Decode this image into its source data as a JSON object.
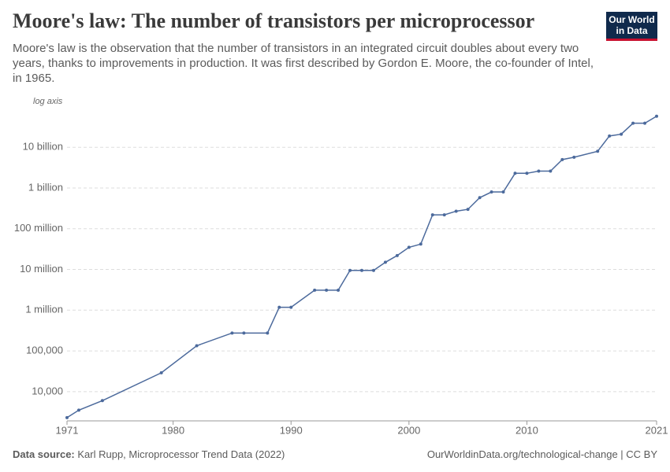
{
  "chart_data": {
    "type": "line",
    "title": "Moore's law: The number of transistors per microprocessor",
    "subtitle": "Moore's law is the observation that the number of transistors in an integrated circuit doubles about every two years, thanks to improvements in production. It was first described by Gordon E. Moore, the co-founder of Intel, in 1965.",
    "y_scale_note": "log axis",
    "log_scale": true,
    "grid": true,
    "color": "#4c6a9c",
    "x": [
      1971,
      1972,
      1974,
      1979,
      1982,
      1985,
      1986,
      1988,
      1989,
      1990,
      1992,
      1993,
      1994,
      1995,
      1996,
      1997,
      1998,
      1999,
      2000,
      2001,
      2002,
      2003,
      2004,
      2005,
      2006,
      2007,
      2008,
      2009,
      2010,
      2011,
      2012,
      2013,
      2014,
      2016,
      2017,
      2018,
      2019,
      2020,
      2021
    ],
    "values": [
      2300,
      3500,
      6000,
      29000,
      134000,
      275000,
      275000,
      275000,
      1180000,
      1180000,
      3100000,
      3100000,
      3100000,
      9500000,
      9500000,
      9500000,
      15000000,
      22000000,
      35000000,
      42000000,
      220000000,
      220000000,
      270000000,
      300000000,
      580000000,
      800000000,
      800000000,
      2300000000,
      2300000000,
      2600000000,
      2600000000,
      5000000000,
      5700000000,
      8000000000,
      19000000000,
      21000000000,
      39000000000,
      39000000000,
      58000000000
    ],
    "xlim": [
      1971,
      2021
    ],
    "xticks": [
      1971,
      1980,
      1990,
      2000,
      2010,
      2021
    ],
    "ylim": [
      2000,
      60000000000
    ],
    "yticks": [
      {
        "value": 10000,
        "label": "10,000"
      },
      {
        "value": 100000,
        "label": "100,000"
      },
      {
        "value": 1000000,
        "label": "1 million"
      },
      {
        "value": 10000000,
        "label": "10 million"
      },
      {
        "value": 100000000,
        "label": "100 million"
      },
      {
        "value": 1000000000,
        "label": "1 billion"
      },
      {
        "value": 10000000000,
        "label": "10 billion"
      }
    ],
    "source_label": "Data source:",
    "source": "Karl Rupp, Microprocessor Trend Data (2022)",
    "footer_right": "OurWorldinData.org/technological-change | CC BY",
    "logo": [
      "Our World",
      "in Data"
    ]
  }
}
